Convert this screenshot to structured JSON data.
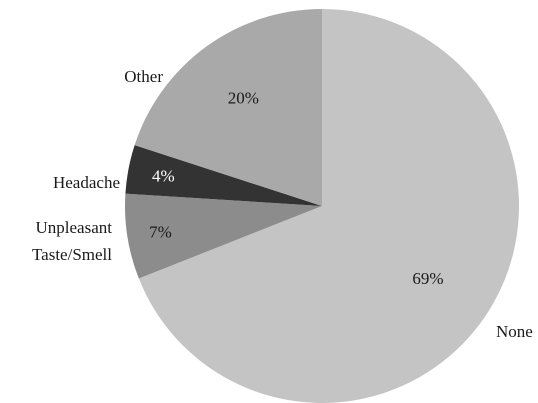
{
  "chart_data": {
    "type": "pie",
    "slices": [
      {
        "category": "None",
        "value": 69,
        "value_label": "69%",
        "color": "#c4c4c4",
        "label_color": "#1a1a1a"
      },
      {
        "category": "Unpleasant Taste/Smell",
        "category_lines": [
          "Unpleasant",
          "Taste/Smell"
        ],
        "value": 7,
        "value_label": "7%",
        "color": "#8c8c8c",
        "label_color": "#1a1a1a"
      },
      {
        "category": "Headache",
        "value": 4,
        "value_label": "4%",
        "color": "#333333",
        "label_color": "#ffffff"
      },
      {
        "category": "Other",
        "value": 20,
        "value_label": "20%",
        "color": "#a9a9a9",
        "label_color": "#1a1a1a"
      }
    ],
    "direction": "clockwise",
    "start": "12 o'clock"
  }
}
